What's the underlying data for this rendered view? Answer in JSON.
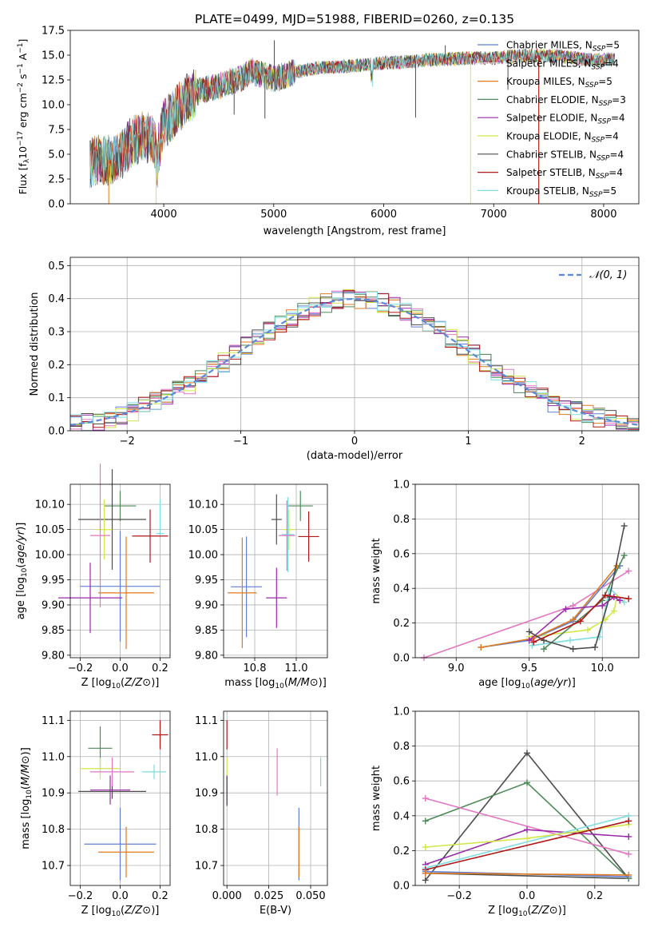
{
  "chart_data": [
    {
      "id": "spectrum",
      "type": "line",
      "title": "PLATE=0499, MJD=51988, FIBERID=0260, z=0.135",
      "xlabel": "wavelength [Angstrom, rest frame]",
      "ylabel": "Flux [fλ10⁻¹⁷ erg cm⁻² s⁻¹ A⁻¹]",
      "xlim": [
        3150,
        8320
      ],
      "ylim": [
        0,
        17.5
      ],
      "xticks": [
        4000,
        5000,
        6000,
        7000,
        8000
      ],
      "yticks": [
        0.0,
        2.5,
        5.0,
        7.5,
        10.0,
        12.5,
        15.0,
        17.5
      ],
      "grid": false,
      "legend_position": "right",
      "envelope": {
        "x": [
          3330,
          3400,
          3500,
          3600,
          3700,
          3800,
          3900,
          3950,
          4000,
          4100,
          4200,
          4300,
          4400,
          4500,
          4600,
          4700,
          4800,
          4900,
          5000,
          5200,
          5400,
          5600,
          5800,
          6000,
          6200,
          6400,
          6600,
          6800,
          7000,
          7200,
          7400,
          7600,
          7800,
          8000,
          8100
        ],
        "y": [
          4.2,
          4.5,
          4.4,
          4.8,
          6.2,
          6.8,
          6.5,
          5.5,
          8.0,
          9.2,
          10.5,
          11.2,
          11.7,
          11.9,
          12.3,
          12.6,
          13.4,
          13.0,
          12.6,
          13.3,
          13.7,
          13.8,
          14.0,
          14.2,
          14.3,
          14.5,
          14.6,
          14.7,
          14.7,
          14.9,
          15.0,
          14.9,
          14.6,
          14.5,
          14.6
        ]
      },
      "series": [
        {
          "name": "Chabrier MILES, N_SSP=5",
          "color": "#5f7fd0"
        },
        {
          "name": "Salpeter MILES, N_SSP=4",
          "color": "#d8d8d8"
        },
        {
          "name": "Kroupa MILES, N_SSP=5",
          "color": "#e07a20"
        },
        {
          "name": "Chabrier ELODIE, N_SSP=3",
          "color": "#4d8a57"
        },
        {
          "name": "Salpeter ELODIE, N_SSP=4",
          "color": "#9a2aaa"
        },
        {
          "name": "Kroupa ELODIE, N_SSP=4",
          "color": "#d2e84a"
        },
        {
          "name": "Chabrier STELIB, N_SSP=4",
          "color": "#4d4d4d"
        },
        {
          "name": "Salpeter STELIB, N_SSP=4",
          "color": "#b01818"
        },
        {
          "name": "Kroupa STELIB, N_SSP=5",
          "color": "#7fdde0"
        }
      ],
      "legend": [
        {
          "prefix": "Chabrier MILES, N",
          "sub": "SSP",
          "suffix": "=5",
          "color": "#5f7fd0"
        },
        {
          "prefix": "Salpeter MILES, N",
          "sub": "SSP",
          "suffix": "=4",
          "color": "#d8d8d8"
        },
        {
          "prefix": "Kroupa MILES, N",
          "sub": "SSP",
          "suffix": "=5",
          "color": "#e07a20"
        },
        {
          "prefix": "Chabrier ELODIE, N",
          "sub": "SSP",
          "suffix": "=3",
          "color": "#4d8a57"
        },
        {
          "prefix": "Salpeter ELODIE, N",
          "sub": "SSP",
          "suffix": "=4",
          "color": "#9a2aaa"
        },
        {
          "prefix": "Kroupa ELODIE, N",
          "sub": "SSP",
          "suffix": "=4",
          "color": "#d2e84a"
        },
        {
          "prefix": "Chabrier STELIB, N",
          "sub": "SSP",
          "suffix": "=4",
          "color": "#4d4d4d"
        },
        {
          "prefix": "Salpeter STELIB, N",
          "sub": "SSP",
          "suffix": "=4",
          "color": "#b01818"
        },
        {
          "prefix": "Kroupa STELIB, N",
          "sub": "SSP",
          "suffix": "=5",
          "color": "#7fdde0"
        }
      ]
    },
    {
      "id": "residuals",
      "type": "line",
      "xlabel": "(data-model)/error",
      "ylabel": "Normed distribution",
      "xlim": [
        -2.5,
        2.5
      ],
      "ylim": [
        0,
        0.525
      ],
      "xticks": [
        -2,
        -1,
        0,
        1,
        2
      ],
      "yticks": [
        0.0,
        0.1,
        0.2,
        0.3,
        0.4,
        0.5
      ],
      "grid": true,
      "legend_position": "top-right",
      "bin_width": 0.1,
      "normal_curve": {
        "label": "𝒩(0, 1)",
        "color": "#5b8bd6",
        "mean": 0,
        "sigma": 1
      }
    },
    {
      "id": "age-vs-Z",
      "type": "scatter",
      "xlabel": "Z [log10(Z/Z⊙)]",
      "ylabel": "age  [log10(age/yr)]",
      "xlim": [
        -0.25,
        0.25
      ],
      "ylim": [
        9.795,
        10.14
      ],
      "xticks": [
        -0.2,
        0.0,
        0.2
      ],
      "yticks": [
        9.8,
        9.85,
        9.9,
        9.95,
        10.0,
        10.05,
        10.1
      ],
      "grid": true,
      "points": [
        {
          "x": 0.0,
          "y": 10.097,
          "xerr": 0.08,
          "yerr": 0.03,
          "color": "#4d8a57"
        },
        {
          "x": -0.04,
          "y": 10.07,
          "xerr": 0.17,
          "yerr": 0.1,
          "color": "#4d4d4d"
        },
        {
          "x": -0.08,
          "y": 10.05,
          "xerr": 0.04,
          "yerr": 0.06,
          "color": "#d2e84a"
        },
        {
          "x": 0.2,
          "y": 10.075,
          "xerr": 0.0,
          "yerr": 0.035,
          "color": "#7fdde0"
        },
        {
          "x": 0.2,
          "y": 10.042,
          "xerr": 0.02,
          "yerr": 0.0,
          "color": "#7fdde0"
        },
        {
          "x": -0.1,
          "y": 10.038,
          "xerr": 0.05,
          "yerr": 0.143,
          "color": "#e377c2"
        },
        {
          "x": 0.15,
          "y": 10.037,
          "xerr": 0.09,
          "yerr": 0.053,
          "color": "#b01818"
        },
        {
          "x": 0.0,
          "y": 9.937,
          "xerr": 0.2,
          "yerr": 0.11,
          "color": "#5f7fd0"
        },
        {
          "x": 0.03,
          "y": 9.924,
          "xerr": 0.14,
          "yerr": 0.112,
          "color": "#e07a20"
        },
        {
          "x": -0.15,
          "y": 9.914,
          "xerr": 0.16,
          "yerr": 0.07,
          "color": "#9a2aaa"
        }
      ]
    },
    {
      "id": "age-vs-mass",
      "type": "scatter",
      "xlabel": "mass [log10(M/M⊙)]",
      "yticks": [
        9.8,
        9.85,
        9.9,
        9.95,
        10.0,
        10.05,
        10.1
      ],
      "ylim": [
        9.795,
        10.14
      ],
      "xlim": [
        10.65,
        11.15
      ],
      "xticks": [
        10.8,
        11.0
      ],
      "grid": true,
      "points": [
        {
          "x": 11.02,
          "y": 10.097,
          "xerr": 0.06,
          "yerr": 0.03,
          "color": "#4d8a57"
        },
        {
          "x": 10.905,
          "y": 10.07,
          "xerr": 0.025,
          "yerr": 0.05,
          "color": "#4d4d4d"
        },
        {
          "x": 10.965,
          "y": 10.05,
          "xerr": 0.03,
          "yerr": 0.04,
          "color": "#d2e84a"
        },
        {
          "x": 10.96,
          "y": 10.04,
          "xerr": 0.03,
          "yerr": 0.075,
          "color": "#7fdde0"
        },
        {
          "x": 10.955,
          "y": 10.038,
          "xerr": 0.04,
          "yerr": 0.07,
          "color": "#e377c2"
        },
        {
          "x": 11.06,
          "y": 10.036,
          "xerr": 0.05,
          "yerr": 0.05,
          "color": "#b01818"
        },
        {
          "x": 10.76,
          "y": 9.936,
          "xerr": 0.075,
          "yerr": 0.1,
          "color": "#5f7fd0"
        },
        {
          "x": 10.74,
          "y": 9.924,
          "xerr": 0.07,
          "yerr": 0.11,
          "color": "#e07a20"
        },
        {
          "x": 10.905,
          "y": 9.914,
          "xerr": 0.05,
          "yerr": 0.06,
          "color": "#9a2aaa"
        }
      ]
    },
    {
      "id": "massweight-vs-age",
      "type": "line",
      "xlabel": "age  [log10(age/yr)]",
      "ylabel": "mass weight",
      "xlim": [
        8.72,
        10.25
      ],
      "ylim": [
        0.0,
        1.0
      ],
      "xticks": [
        9.0,
        9.5,
        10.0
      ],
      "yticks": [
        0.0,
        0.2,
        0.4,
        0.6,
        0.8,
        1.0
      ],
      "grid": true,
      "series": [
        {
          "color": "#e377c2",
          "x": [
            8.78,
            9.8,
            10.18
          ],
          "y": [
            0.0,
            0.3,
            0.5
          ]
        },
        {
          "color": "#7fdde0",
          "x": [
            9.52,
            9.78,
            9.98,
            10.05,
            10.15
          ],
          "y": [
            0.07,
            0.1,
            0.12,
            0.4,
            0.32
          ]
        },
        {
          "color": "#d2e84a",
          "x": [
            9.5,
            9.9,
            10.02,
            10.08,
            10.1
          ],
          "y": [
            0.12,
            0.16,
            0.22,
            0.27,
            0.35
          ]
        },
        {
          "color": "#5f7fd0",
          "x": [
            9.17,
            9.5,
            9.8,
            10.12
          ],
          "y": [
            0.06,
            0.1,
            0.21,
            0.53
          ]
        },
        {
          "color": "#e07a20",
          "x": [
            9.17,
            9.52,
            9.8,
            10.1
          ],
          "y": [
            0.06,
            0.11,
            0.22,
            0.53
          ]
        },
        {
          "color": "#4d8a57",
          "x": [
            9.6,
            10.0,
            10.15
          ],
          "y": [
            0.05,
            0.33,
            0.59
          ]
        },
        {
          "color": "#9a2aaa",
          "x": [
            9.5,
            9.75,
            10.0,
            10.08,
            10.12
          ],
          "y": [
            0.1,
            0.28,
            0.3,
            0.35,
            0.33
          ]
        },
        {
          "color": "#4d4d4d",
          "x": [
            9.5,
            9.6,
            9.8,
            9.95,
            10.05,
            10.15
          ],
          "y": [
            0.15,
            0.1,
            0.05,
            0.06,
            0.35,
            0.76
          ]
        },
        {
          "color": "#b01818",
          "x": [
            9.53,
            9.85,
            10.02,
            10.18
          ],
          "y": [
            0.09,
            0.21,
            0.36,
            0.34
          ]
        }
      ]
    },
    {
      "id": "mass-vs-Z",
      "type": "scatter",
      "xlabel": "Z [log10(Z/Z⊙)]",
      "ylabel": "mass [log10(M/M⊙)]",
      "xlim": [
        -0.25,
        0.25
      ],
      "ylim": [
        10.645,
        11.125
      ],
      "xticks": [
        -0.2,
        0.0,
        0.2
      ],
      "yticks": [
        10.7,
        10.8,
        10.9,
        11.0,
        11.1
      ],
      "grid": true,
      "points": [
        {
          "x": -0.1,
          "y": 11.023,
          "xerr": 0.06,
          "yerr": 0.06,
          "color": "#4d8a57"
        },
        {
          "x": -0.04,
          "y": 10.904,
          "xerr": 0.17,
          "yerr": 0.02,
          "color": "#4d4d4d"
        },
        {
          "x": -0.1,
          "y": 10.967,
          "xerr": 0.1,
          "yerr": 0.03,
          "color": "#d2e84a"
        },
        {
          "x": 0.17,
          "y": 10.958,
          "xerr": 0.06,
          "yerr": 0.02,
          "color": "#7fdde0"
        },
        {
          "x": -0.04,
          "y": 10.958,
          "xerr": 0.11,
          "yerr": 0.04,
          "color": "#e377c2"
        },
        {
          "x": 0.2,
          "y": 11.06,
          "xerr": 0.04,
          "yerr": 0.04,
          "color": "#b01818"
        },
        {
          "x": 0.0,
          "y": 10.759,
          "xerr": 0.18,
          "yerr": 0.1,
          "color": "#5f7fd0"
        },
        {
          "x": 0.03,
          "y": 10.737,
          "xerr": 0.14,
          "yerr": 0.07,
          "color": "#e07a20"
        },
        {
          "x": -0.05,
          "y": 10.908,
          "xerr": 0.1,
          "yerr": 0.04,
          "color": "#9a2aaa"
        }
      ]
    },
    {
      "id": "mass-vs-ebv",
      "type": "scatter",
      "xlabel": "E(B-V)",
      "xlim": [
        -0.002,
        0.06
      ],
      "ylim": [
        10.645,
        11.125
      ],
      "xticks": [
        0.0,
        0.025,
        0.05
      ],
      "xticklabels": [
        "0.000",
        "0.025",
        "0.050"
      ],
      "yticks": [
        10.7,
        10.8,
        10.9,
        11.0,
        11.1
      ],
      "grid": true,
      "points": [
        {
          "x": 0.0,
          "y": 11.06,
          "xerr": 0,
          "yerr": 0.04,
          "color": "#b01818"
        },
        {
          "x": 0.0,
          "y": 10.967,
          "xerr": 0,
          "yerr": 0.03,
          "color": "#d2e84a"
        },
        {
          "x": 0.0,
          "y": 10.908,
          "xerr": 0,
          "yerr": 0.04,
          "color": "#9a2aaa"
        },
        {
          "x": 0.0,
          "y": 10.904,
          "xerr": 0,
          "yerr": 0.04,
          "color": "#4d4d4d"
        },
        {
          "x": 0.03,
          "y": 10.958,
          "xerr": 0,
          "yerr": 0.065,
          "color": "#e377c2"
        },
        {
          "x": 0.043,
          "y": 10.759,
          "xerr": 0,
          "yerr": 0.1,
          "color": "#5f7fd0"
        },
        {
          "x": 0.043,
          "y": 10.737,
          "xerr": 0,
          "yerr": 0.07,
          "color": "#e07a20"
        },
        {
          "x": 0.056,
          "y": 10.958,
          "xerr": 0,
          "yerr": 0.04,
          "color": "#7fdde0"
        }
      ]
    },
    {
      "id": "massweight-vs-Z",
      "type": "line",
      "xlabel": "Z [log10(Z/Z⊙)]",
      "ylabel": "mass weight",
      "xlim": [
        -0.33,
        0.33
      ],
      "ylim": [
        0.0,
        1.0
      ],
      "xticks": [
        -0.2,
        0.0,
        0.2
      ],
      "yticks": [
        0.0,
        0.2,
        0.4,
        0.6,
        0.8,
        1.0
      ],
      "grid": true,
      "series": [
        {
          "color": "#4d4d4d",
          "x": [
            -0.3,
            0.0,
            0.3,
            -0.3
          ],
          "y": [
            0.03,
            0.76,
            0.04,
            0.07
          ]
        },
        {
          "color": "#4d8a57",
          "x": [
            -0.3,
            0.0,
            0.3
          ],
          "y": [
            0.37,
            0.59,
            0.04
          ]
        },
        {
          "color": "#e377c2",
          "x": [
            -0.3,
            0.3
          ],
          "y": [
            0.5,
            0.18
          ]
        },
        {
          "color": "#9a2aaa",
          "x": [
            -0.3,
            0.0,
            0.3
          ],
          "y": [
            0.12,
            0.32,
            0.28
          ]
        },
        {
          "color": "#7fdde0",
          "x": [
            -0.3,
            0.3
          ],
          "y": [
            0.1,
            0.4
          ]
        },
        {
          "color": "#d2e84a",
          "x": [
            -0.3,
            0.0,
            0.3
          ],
          "y": [
            0.22,
            0.27,
            0.35
          ]
        },
        {
          "color": "#b01818",
          "x": [
            -0.3,
            0.3
          ],
          "y": [
            0.09,
            0.37
          ]
        },
        {
          "color": "#5f7fd0",
          "x": [
            -0.3,
            0.3
          ],
          "y": [
            0.08,
            0.05
          ]
        },
        {
          "color": "#e07a20",
          "x": [
            -0.3,
            0.3
          ],
          "y": [
            0.07,
            0.06
          ]
        }
      ]
    }
  ]
}
